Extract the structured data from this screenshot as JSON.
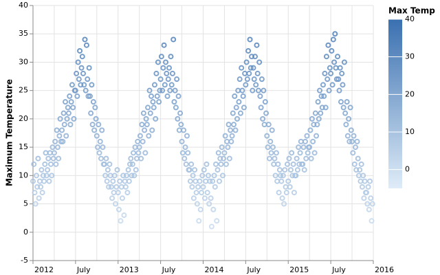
{
  "chart_data": {
    "type": "scatter",
    "y_label": "Maximum Temperature",
    "legend_title": "Max Temp",
    "ylim": [
      -5,
      40
    ],
    "yticks": [
      -5,
      0,
      5,
      10,
      15,
      20,
      25,
      30,
      35,
      40
    ],
    "xlim": [
      2012,
      2016
    ],
    "xticks": [
      {
        "value": 2012,
        "label": "2012"
      },
      {
        "value": 2012.5,
        "label": "July"
      },
      {
        "value": 2013,
        "label": "2013"
      },
      {
        "value": 2013.5,
        "label": "July"
      },
      {
        "value": 2014,
        "label": "2014"
      },
      {
        "value": 2014.5,
        "label": "July"
      },
      {
        "value": 2015,
        "label": "2015"
      },
      {
        "value": 2015.5,
        "label": "July"
      },
      {
        "value": 2016,
        "label": "2016"
      }
    ],
    "minor_xgrid": [
      2012.25,
      2012.75,
      2013.25,
      2013.75,
      2014.25,
      2014.75,
      2015.25,
      2015.75
    ],
    "grid": true,
    "color_scale": {
      "domain": [
        -5,
        40
      ],
      "range": [
        "#dfecf8",
        "#3a70b0"
      ]
    },
    "legend_ticks": [
      0,
      10,
      20,
      30,
      40
    ],
    "x": [
      2012,
      2012.01,
      2012.02,
      2012.03,
      2012.04,
      2012.05,
      2012.06,
      2012.07,
      2012.08,
      2012.09,
      2012.1,
      2012.11,
      2012.12,
      2012.13,
      2012.14,
      2012.15,
      2012.16,
      2012.17,
      2012.18,
      2012.19,
      2012.2,
      2012.21,
      2012.22,
      2012.23,
      2012.24,
      2012.25,
      2012.26,
      2012.27,
      2012.28,
      2012.29,
      2012.3,
      2012.31,
      2012.32,
      2012.33,
      2012.34,
      2012.35,
      2012.36,
      2012.37,
      2012.38,
      2012.39,
      2012.4,
      2012.41,
      2012.42,
      2012.43,
      2012.44,
      2012.45,
      2012.46,
      2012.47,
      2012.48,
      2012.49,
      2012.5,
      2012.51,
      2012.52,
      2012.53,
      2012.54,
      2012.55,
      2012.56,
      2012.57,
      2012.58,
      2012.59,
      2012.6,
      2012.61,
      2012.62,
      2012.63,
      2012.64,
      2012.65,
      2012.66,
      2012.67,
      2012.68,
      2012.69,
      2012.7,
      2012.71,
      2012.72,
      2012.73,
      2012.74,
      2012.75,
      2012.76,
      2012.77,
      2012.78,
      2012.79,
      2012.8,
      2012.81,
      2012.82,
      2012.83,
      2012.84,
      2012.85,
      2012.86,
      2012.87,
      2012.88,
      2012.89,
      2012.9,
      2012.91,
      2012.92,
      2012.93,
      2012.94,
      2012.95,
      2012.96,
      2012.97,
      2012.98,
      2012.99,
      2013,
      2013.01,
      2013.02,
      2013.03,
      2013.04,
      2013.05,
      2013.06,
      2013.07,
      2013.08,
      2013.09,
      2013.1,
      2013.11,
      2013.12,
      2013.13,
      2013.14,
      2013.15,
      2013.16,
      2013.17,
      2013.18,
      2013.19,
      2013.2,
      2013.21,
      2013.22,
      2013.23,
      2013.24,
      2013.25,
      2013.26,
      2013.27,
      2013.28,
      2013.29,
      2013.3,
      2013.31,
      2013.32,
      2013.33,
      2013.34,
      2013.35,
      2013.36,
      2013.37,
      2013.38,
      2013.39,
      2013.4,
      2013.41,
      2013.42,
      2013.43,
      2013.44,
      2013.45,
      2013.46,
      2013.47,
      2013.48,
      2013.49,
      2013.5,
      2013.51,
      2013.52,
      2013.53,
      2013.54,
      2013.55,
      2013.56,
      2013.57,
      2013.58,
      2013.59,
      2013.6,
      2013.61,
      2013.62,
      2013.63,
      2013.64,
      2013.65,
      2013.66,
      2013.67,
      2013.68,
      2013.69,
      2013.7,
      2013.71,
      2013.72,
      2013.73,
      2013.74,
      2013.75,
      2013.76,
      2013.77,
      2013.78,
      2013.79,
      2013.8,
      2013.81,
      2013.82,
      2013.83,
      2013.84,
      2013.85,
      2013.86,
      2013.87,
      2013.88,
      2013.89,
      2013.9,
      2013.91,
      2013.92,
      2013.93,
      2013.94,
      2013.95,
      2013.96,
      2013.97,
      2013.98,
      2013.99,
      2014,
      2014.01,
      2014.02,
      2014.03,
      2014.04,
      2014.05,
      2014.06,
      2014.07,
      2014.08,
      2014.09,
      2014.1,
      2014.11,
      2014.12,
      2014.13,
      2014.14,
      2014.15,
      2014.16,
      2014.17,
      2014.18,
      2014.19,
      2014.2,
      2014.21,
      2014.22,
      2014.23,
      2014.24,
      2014.25,
      2014.26,
      2014.27,
      2014.28,
      2014.29,
      2014.3,
      2014.31,
      2014.32,
      2014.33,
      2014.34,
      2014.35,
      2014.36,
      2014.37,
      2014.38,
      2014.39,
      2014.4,
      2014.41,
      2014.42,
      2014.43,
      2014.44,
      2014.45,
      2014.46,
      2014.47,
      2014.48,
      2014.49,
      2014.5,
      2014.51,
      2014.52,
      2014.53,
      2014.54,
      2014.55,
      2014.56,
      2014.57,
      2014.58,
      2014.59,
      2014.6,
      2014.61,
      2014.62,
      2014.63,
      2014.64,
      2014.65,
      2014.66,
      2014.67,
      2014.68,
      2014.69,
      2014.7,
      2014.71,
      2014.72,
      2014.73,
      2014.74,
      2014.75,
      2014.76,
      2014.77,
      2014.78,
      2014.79,
      2014.8,
      2014.81,
      2014.82,
      2014.83,
      2014.84,
      2014.85,
      2014.86,
      2014.87,
      2014.88,
      2014.89,
      2014.9,
      2014.91,
      2014.92,
      2014.93,
      2014.94,
      2014.95,
      2014.96,
      2014.97,
      2014.98,
      2014.99,
      2015,
      2015.01,
      2015.02,
      2015.03,
      2015.04,
      2015.05,
      2015.06,
      2015.07,
      2015.08,
      2015.09,
      2015.1,
      2015.11,
      2015.12,
      2015.13,
      2015.14,
      2015.15,
      2015.16,
      2015.17,
      2015.18,
      2015.19,
      2015.2,
      2015.21,
      2015.22,
      2015.23,
      2015.24,
      2015.25,
      2015.26,
      2015.27,
      2015.28,
      2015.29,
      2015.3,
      2015.31,
      2015.32,
      2015.33,
      2015.34,
      2015.35,
      2015.36,
      2015.37,
      2015.38,
      2015.39,
      2015.4,
      2015.41,
      2015.42,
      2015.43,
      2015.44,
      2015.45,
      2015.46,
      2015.47,
      2015.48,
      2015.49,
      2015.5,
      2015.51,
      2015.52,
      2015.53,
      2015.54,
      2015.55,
      2015.56,
      2015.57,
      2015.58,
      2015.59,
      2015.6,
      2015.61,
      2015.62,
      2015.63,
      2015.64,
      2015.65,
      2015.66,
      2015.67,
      2015.68,
      2015.69,
      2015.7,
      2015.71,
      2015.72,
      2015.73,
      2015.74,
      2015.75,
      2015.76,
      2015.77,
      2015.78,
      2015.79,
      2015.8,
      2015.81,
      2015.82,
      2015.83,
      2015.84,
      2015.85,
      2015.86,
      2015.87,
      2015.88,
      2015.89,
      2015.9,
      2015.91,
      2015.92,
      2015.93,
      2015.94,
      2015.95,
      2015.96,
      2015.97,
      2015.98,
      2015.99
    ],
    "values": [
      9,
      12,
      7,
      5,
      10,
      8,
      13,
      6,
      9,
      8,
      11,
      7,
      10,
      9,
      12,
      14,
      10,
      11,
      13,
      9,
      14,
      12,
      10,
      15,
      13,
      14,
      16,
      12,
      18,
      15,
      13,
      17,
      20,
      16,
      18,
      16,
      21,
      19,
      23,
      17,
      20,
      22,
      21,
      24,
      19,
      23,
      26,
      22,
      20,
      25,
      25,
      28,
      24,
      30,
      27,
      32,
      26,
      29,
      31,
      28,
      26,
      34,
      25,
      33,
      27,
      24,
      29,
      24,
      21,
      26,
      19,
      23,
      18,
      22,
      20,
      17,
      15,
      19,
      14,
      16,
      13,
      18,
      15,
      12,
      12,
      10,
      13,
      9,
      11,
      8,
      12,
      10,
      8,
      6,
      9,
      7,
      10,
      5,
      8,
      11,
      7,
      4,
      9,
      2,
      8,
      6,
      10,
      3,
      9,
      8,
      10,
      7,
      11,
      9,
      12,
      13,
      10,
      12,
      14,
      10,
      15,
      11,
      13,
      16,
      14,
      15,
      17,
      13,
      19,
      16,
      21,
      18,
      14,
      20,
      19,
      22,
      17,
      25,
      21,
      24,
      18,
      23,
      22,
      26,
      20,
      28,
      24,
      30,
      23,
      25,
      27,
      31,
      25,
      29,
      33,
      26,
      30,
      28,
      24,
      27,
      29,
      25,
      31,
      26,
      28,
      34,
      23,
      25,
      22,
      27,
      20,
      24,
      18,
      21,
      19,
      16,
      14,
      18,
      13,
      15,
      12,
      17,
      14,
      11,
      11,
      9,
      12,
      8,
      10,
      6,
      11,
      9,
      7,
      5,
      8,
      2,
      9,
      4,
      7,
      10,
      8,
      11,
      6,
      9,
      12,
      7,
      10,
      5,
      9,
      6,
      1,
      9,
      4,
      10,
      8,
      12,
      2,
      11,
      14,
      9,
      13,
      12,
      15,
      10,
      13,
      14,
      17,
      12,
      16,
      15,
      19,
      13,
      18,
      16,
      17,
      21,
      19,
      24,
      18,
      22,
      20,
      25,
      23,
      27,
      21,
      29,
      25,
      24,
      22,
      28,
      26,
      30,
      27,
      32,
      28,
      34,
      29,
      31,
      25,
      29,
      27,
      31,
      26,
      33,
      28,
      25,
      30,
      24,
      22,
      27,
      20,
      25,
      19,
      23,
      21,
      17,
      15,
      19,
      13,
      16,
      14,
      18,
      15,
      12,
      13,
      10,
      14,
      9,
      12,
      7,
      11,
      10,
      9,
      6,
      10,
      5,
      11,
      8,
      7,
      12,
      9,
      13,
      8,
      11,
      14,
      10,
      12,
      7,
      10,
      10,
      13,
      11,
      15,
      12,
      14,
      16,
      12,
      12,
      15,
      11,
      16,
      13,
      17,
      14,
      15,
      15,
      18,
      13,
      20,
      16,
      19,
      14,
      21,
      17,
      19,
      23,
      20,
      25,
      21,
      24,
      22,
      26,
      24,
      28,
      22,
      31,
      27,
      33,
      25,
      29,
      28,
      32,
      26,
      34,
      30,
      35,
      29,
      27,
      31,
      27,
      25,
      29,
      23,
      28,
      26,
      22,
      30,
      21,
      19,
      23,
      17,
      20,
      16,
      22,
      18,
      16,
      14,
      17,
      12,
      15,
      11,
      16,
      13,
      10,
      11,
      9,
      12,
      8,
      10,
      6,
      9,
      7,
      7,
      5,
      8,
      4,
      9,
      6,
      2,
      5
    ]
  }
}
